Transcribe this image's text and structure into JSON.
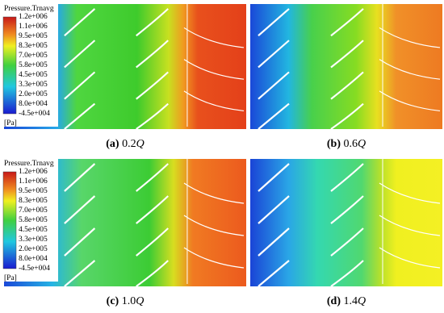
{
  "legend": {
    "title": "Pressure.Trnavg",
    "labels": [
      "1.2e+006",
      "1.1e+006",
      "9.5e+005",
      "8.3e+005",
      "7.0e+005",
      "5.8e+005",
      "4.5e+005",
      "3.3e+005",
      "2.0e+005",
      "8.0e+004",
      "-4.5e+004"
    ],
    "unit": "[Pa]"
  },
  "panels": [
    {
      "label": "(a)",
      "flow": "0.2",
      "symbol": "Q"
    },
    {
      "label": "(b)",
      "flow": "0.6",
      "symbol": "Q"
    },
    {
      "label": "(c)",
      "flow": "1.0",
      "symbol": "Q"
    },
    {
      "label": "(d)",
      "flow": "1.4",
      "symbol": "Q"
    }
  ]
}
